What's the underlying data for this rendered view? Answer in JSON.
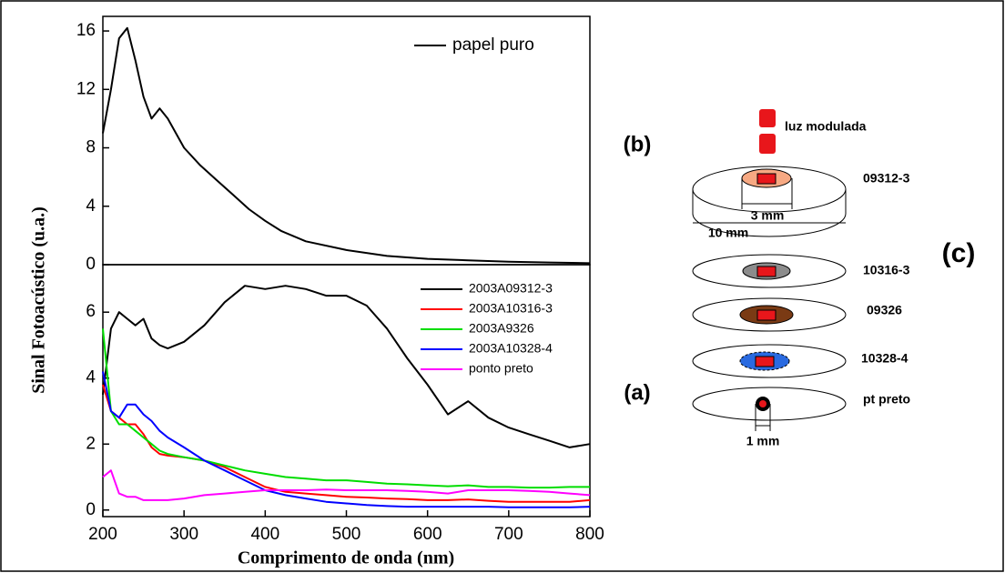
{
  "chart_data": [
    {
      "type": "line",
      "panel_label": "(b)",
      "ylabel": "Sinal Fotoacústico (u.a.)",
      "x": [
        200,
        210,
        220,
        230,
        240,
        250,
        260,
        270,
        280,
        300,
        320,
        340,
        360,
        380,
        400,
        420,
        450,
        500,
        550,
        600,
        650,
        700,
        750,
        800
      ],
      "series": [
        {
          "name": "papel puro",
          "color": "#000000",
          "values": [
            9,
            12,
            15.5,
            16.2,
            14,
            11.5,
            10,
            10.7,
            10,
            8,
            6.8,
            5.8,
            4.8,
            3.8,
            3.0,
            2.3,
            1.6,
            1.0,
            0.6,
            0.4,
            0.3,
            0.2,
            0.15,
            0.1
          ]
        }
      ],
      "xlim": [
        200,
        800
      ],
      "ylim": [
        0,
        17
      ],
      "yticks": [
        0,
        4,
        8,
        12,
        16
      ]
    },
    {
      "type": "line",
      "panel_label": "(a)",
      "xlabel": "Comprimento de onda (nm)",
      "x": [
        200,
        210,
        220,
        230,
        240,
        250,
        260,
        270,
        280,
        300,
        325,
        350,
        375,
        400,
        425,
        450,
        475,
        500,
        525,
        550,
        575,
        600,
        625,
        650,
        675,
        700,
        725,
        750,
        775,
        800
      ],
      "series": [
        {
          "name": "2003A09312-3",
          "color": "#000000",
          "values": [
            3.5,
            5.5,
            6.0,
            5.8,
            5.6,
            5.8,
            5.2,
            5.0,
            4.9,
            5.1,
            5.6,
            6.3,
            6.8,
            6.7,
            6.8,
            6.7,
            6.5,
            6.5,
            6.2,
            5.5,
            4.6,
            3.8,
            2.9,
            3.3,
            2.8,
            2.5,
            2.3,
            2.1,
            1.9,
            2.0
          ]
        },
        {
          "name": "2003A10316-3",
          "color": "#ff0000",
          "values": [
            3.8,
            3.0,
            2.8,
            2.6,
            2.6,
            2.3,
            1.9,
            1.7,
            1.65,
            1.6,
            1.5,
            1.3,
            1.0,
            0.7,
            0.55,
            0.5,
            0.45,
            0.4,
            0.38,
            0.35,
            0.33,
            0.3,
            0.3,
            0.32,
            0.28,
            0.25,
            0.25,
            0.25,
            0.25,
            0.3
          ]
        },
        {
          "name": "2003A9326",
          "color": "#00dd00",
          "values": [
            5.5,
            3.0,
            2.6,
            2.6,
            2.4,
            2.2,
            2.0,
            1.8,
            1.7,
            1.6,
            1.5,
            1.35,
            1.2,
            1.1,
            1.0,
            0.95,
            0.9,
            0.9,
            0.85,
            0.8,
            0.78,
            0.75,
            0.72,
            0.75,
            0.7,
            0.7,
            0.68,
            0.68,
            0.7,
            0.7
          ]
        },
        {
          "name": "2003A10328-4",
          "color": "#0000ff",
          "values": [
            4.2,
            3.0,
            2.8,
            3.2,
            3.2,
            2.9,
            2.7,
            2.4,
            2.2,
            1.9,
            1.5,
            1.2,
            0.9,
            0.6,
            0.45,
            0.35,
            0.25,
            0.2,
            0.15,
            0.12,
            0.1,
            0.1,
            0.1,
            0.1,
            0.1,
            0.08,
            0.08,
            0.08,
            0.08,
            0.1
          ]
        },
        {
          "name": "ponto preto",
          "color": "#ff00ff",
          "values": [
            1.0,
            1.2,
            0.5,
            0.4,
            0.4,
            0.3,
            0.3,
            0.3,
            0.3,
            0.35,
            0.45,
            0.5,
            0.55,
            0.6,
            0.6,
            0.6,
            0.62,
            0.6,
            0.6,
            0.6,
            0.58,
            0.55,
            0.5,
            0.6,
            0.6,
            0.6,
            0.58,
            0.55,
            0.5,
            0.45
          ]
        }
      ],
      "xlim": [
        200,
        800
      ],
      "ylim": [
        -0.2,
        7.44
      ],
      "xticks": [
        200,
        300,
        400,
        500,
        600,
        700,
        800
      ],
      "yticks": [
        0,
        2,
        4,
        6
      ]
    }
  ],
  "diagram": {
    "panel_label": "(c)",
    "light": "luz modulada",
    "samples": [
      "09312-3",
      "10316-3",
      "09326",
      "10328-4",
      "pt preto"
    ],
    "inner_size": "3 mm",
    "outer_size": "10 mm",
    "dot_size": "1 mm"
  }
}
